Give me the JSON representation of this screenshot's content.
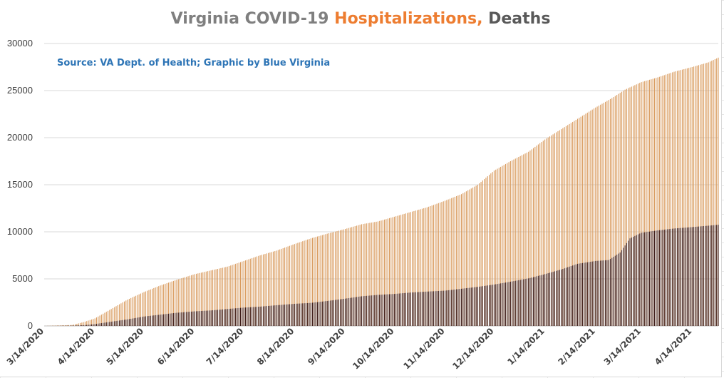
{
  "title": {
    "part1": "Virginia COVID-19 ",
    "part2": "Hospitalizations,",
    "part3": " Deaths"
  },
  "source_note": "Source: VA Dept. of Health; Graphic by Blue Virginia",
  "colors": {
    "hospitalizations": "#d99b5e",
    "deaths": "#3d1b17",
    "title_grey": "#7f7f7f",
    "title_orange": "#ed7d31",
    "title_dark": "#595959",
    "source_blue": "#2e75b6",
    "gridline": "#d9d9d9"
  },
  "chart_data": {
    "type": "bar",
    "title": "Virginia COVID-19 Hospitalizations, Deaths",
    "xlabel": "",
    "ylabel": "",
    "ylim": [
      0,
      30000
    ],
    "yticks": [
      0,
      5000,
      10000,
      15000,
      20000,
      25000,
      30000
    ],
    "grid": true,
    "legend": "none",
    "x_start": "3/14/2020",
    "x_end": "4/30/2021",
    "x_tick_labels": [
      "3/14/2020",
      "4/14/2020",
      "5/14/2020",
      "6/14/2020",
      "7/14/2020",
      "8/14/2020",
      "9/14/2020",
      "10/14/2020",
      "11/14/2020",
      "12/14/2020",
      "1/14/2021",
      "2/14/2021",
      "3/14/2021",
      "4/14/2021"
    ],
    "series": [
      {
        "name": "Hospitalizations",
        "points": [
          [
            "3/14/2020",
            0
          ],
          [
            "3/31/2020",
            100
          ],
          [
            "4/7/2020",
            400
          ],
          [
            "4/14/2020",
            800
          ],
          [
            "4/24/2020",
            1800
          ],
          [
            "5/4/2020",
            2800
          ],
          [
            "5/14/2020",
            3600
          ],
          [
            "5/24/2020",
            4300
          ],
          [
            "6/3/2020",
            4900
          ],
          [
            "6/14/2020",
            5500
          ],
          [
            "6/24/2020",
            5900
          ],
          [
            "7/4/2020",
            6300
          ],
          [
            "7/14/2020",
            6900
          ],
          [
            "7/24/2020",
            7500
          ],
          [
            "8/3/2020",
            8000
          ],
          [
            "8/14/2020",
            8700
          ],
          [
            "8/24/2020",
            9300
          ],
          [
            "9/3/2020",
            9800
          ],
          [
            "9/14/2020",
            10300
          ],
          [
            "9/24/2020",
            10800
          ],
          [
            "10/4/2020",
            11100
          ],
          [
            "10/14/2020",
            11600
          ],
          [
            "10/24/2020",
            12100
          ],
          [
            "11/3/2020",
            12600
          ],
          [
            "11/14/2020",
            13300
          ],
          [
            "11/24/2020",
            14000
          ],
          [
            "12/4/2020",
            15000
          ],
          [
            "12/14/2020",
            16500
          ],
          [
            "12/24/2020",
            17500
          ],
          [
            "1/4/2021",
            18500
          ],
          [
            "1/14/2021",
            19800
          ],
          [
            "1/24/2021",
            20900
          ],
          [
            "2/3/2021",
            22000
          ],
          [
            "2/14/2021",
            23200
          ],
          [
            "2/24/2021",
            24200
          ],
          [
            "3/4/2021",
            25100
          ],
          [
            "3/14/2021",
            25900
          ],
          [
            "3/24/2021",
            26400
          ],
          [
            "4/3/2021",
            27000
          ],
          [
            "4/14/2021",
            27500
          ],
          [
            "4/24/2021",
            28000
          ],
          [
            "4/30/2021",
            28500
          ]
        ]
      },
      {
        "name": "Deaths",
        "points": [
          [
            "3/14/2020",
            0
          ],
          [
            "3/31/2020",
            30
          ],
          [
            "4/7/2020",
            80
          ],
          [
            "4/14/2020",
            200
          ],
          [
            "4/24/2020",
            450
          ],
          [
            "5/4/2020",
            700
          ],
          [
            "5/14/2020",
            1000
          ],
          [
            "5/24/2020",
            1200
          ],
          [
            "6/3/2020",
            1400
          ],
          [
            "6/14/2020",
            1550
          ],
          [
            "6/24/2020",
            1650
          ],
          [
            "7/4/2020",
            1800
          ],
          [
            "7/14/2020",
            1950
          ],
          [
            "7/24/2020",
            2050
          ],
          [
            "8/3/2020",
            2200
          ],
          [
            "8/14/2020",
            2350
          ],
          [
            "8/24/2020",
            2450
          ],
          [
            "9/3/2020",
            2650
          ],
          [
            "9/14/2020",
            2900
          ],
          [
            "9/24/2020",
            3150
          ],
          [
            "10/4/2020",
            3300
          ],
          [
            "10/14/2020",
            3400
          ],
          [
            "10/24/2020",
            3550
          ],
          [
            "11/3/2020",
            3650
          ],
          [
            "11/14/2020",
            3750
          ],
          [
            "11/24/2020",
            3950
          ],
          [
            "12/4/2020",
            4150
          ],
          [
            "12/14/2020",
            4400
          ],
          [
            "12/24/2020",
            4700
          ],
          [
            "1/4/2021",
            5050
          ],
          [
            "1/14/2021",
            5500
          ],
          [
            "1/24/2021",
            6000
          ],
          [
            "2/3/2021",
            6600
          ],
          [
            "2/14/2021",
            6900
          ],
          [
            "2/22/2021",
            7000
          ],
          [
            "3/1/2021",
            7800
          ],
          [
            "3/7/2021",
            9300
          ],
          [
            "3/14/2021",
            9900
          ],
          [
            "3/24/2021",
            10150
          ],
          [
            "4/3/2021",
            10350
          ],
          [
            "4/14/2021",
            10500
          ],
          [
            "4/24/2021",
            10650
          ],
          [
            "4/30/2021",
            10750
          ]
        ]
      }
    ]
  }
}
